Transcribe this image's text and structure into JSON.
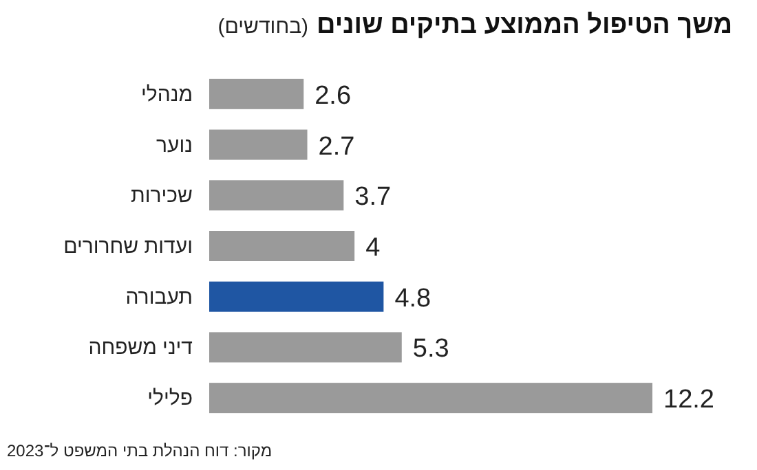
{
  "chart_data": {
    "type": "bar",
    "orientation": "horizontal",
    "title": "משך הטיפול הממוצע בתיקים שונים",
    "subtitle": "(בחודשים)",
    "categories": [
      "מנהלי",
      "נוער",
      "שכירות",
      "ועדות שחרורים",
      "תעבורה",
      "דיני משפחה",
      "פלילי"
    ],
    "values": [
      2.6,
      2.7,
      3.7,
      4,
      4.8,
      5.3,
      12.2
    ],
    "colors": [
      "#9a9a9a",
      "#9a9a9a",
      "#9a9a9a",
      "#9a9a9a",
      "#1f56a3",
      "#9a9a9a",
      "#9a9a9a"
    ],
    "data_labels": true,
    "annotations": [
      "מקור: דוח הנהלת בתי המשפט ל־2023"
    ]
  }
}
